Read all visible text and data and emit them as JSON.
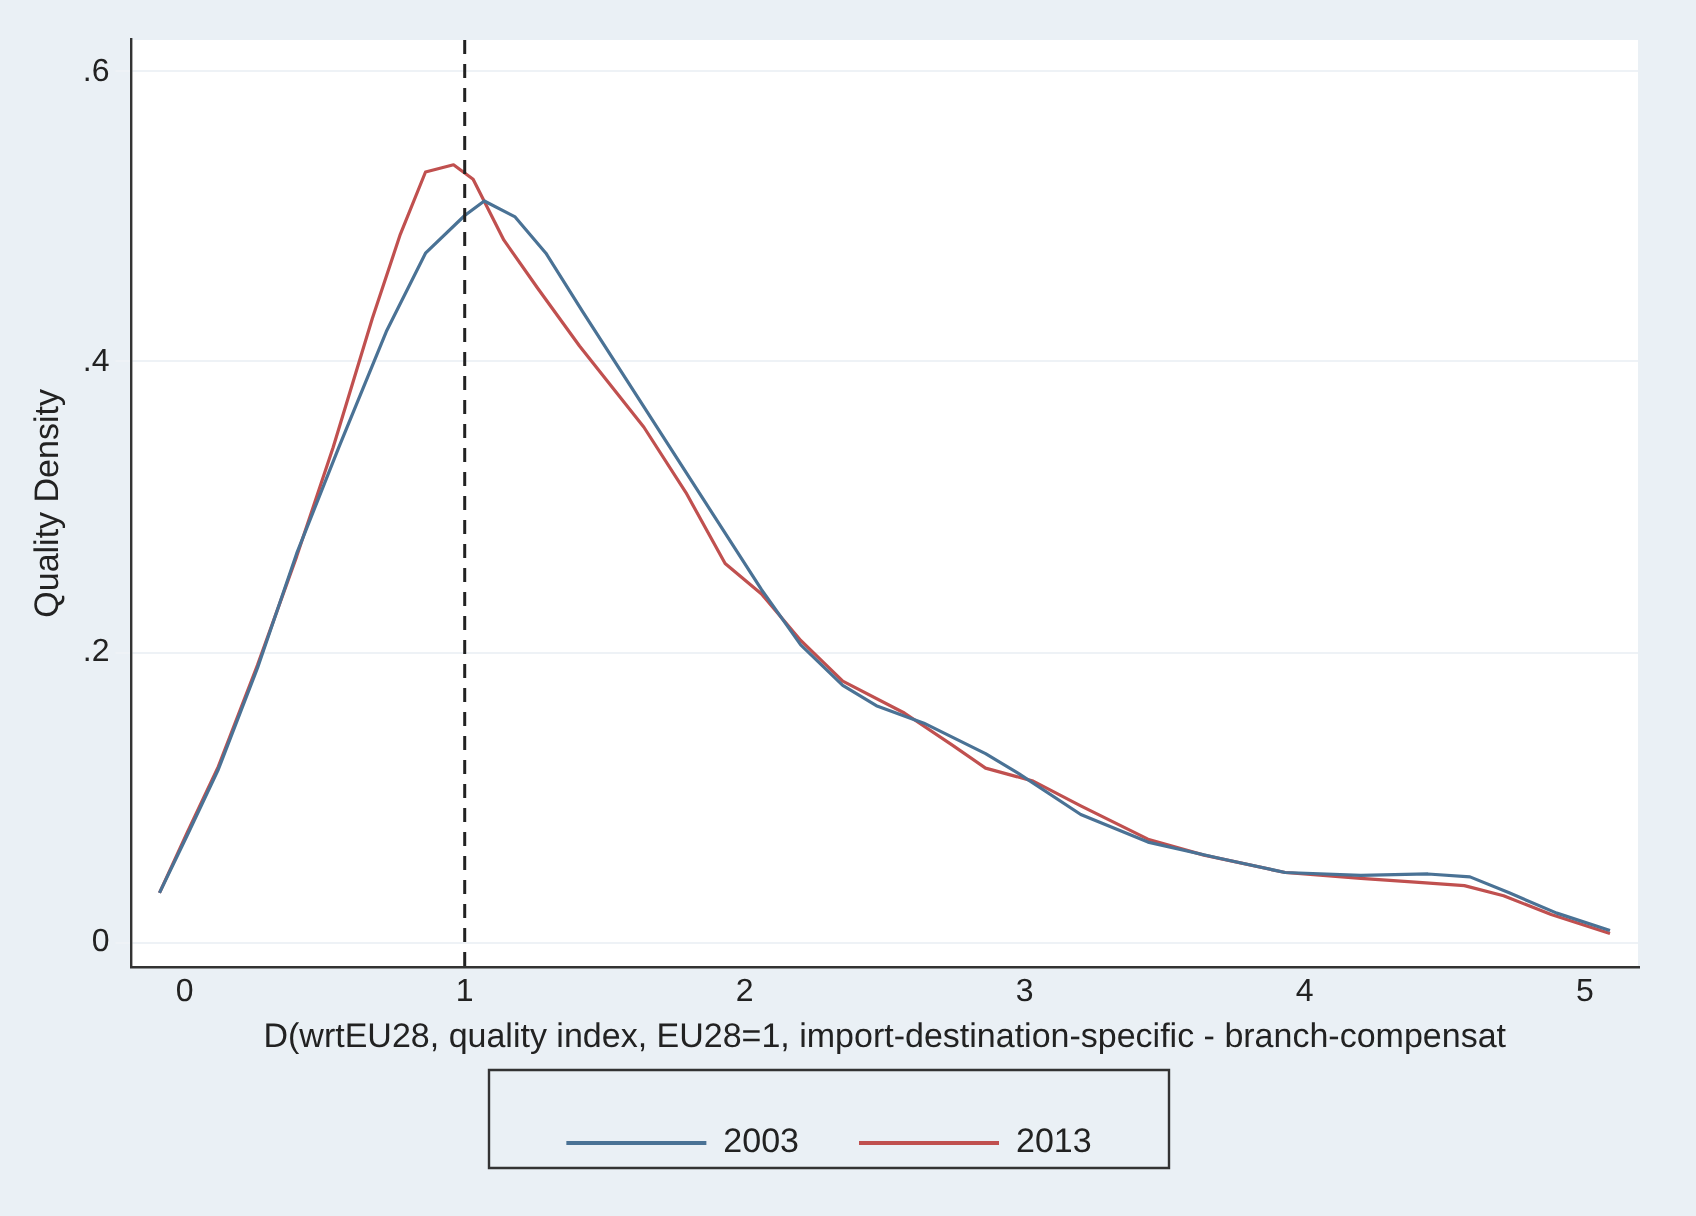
{
  "chart_data": {
    "type": "line",
    "xlabel": "D(wrtEU28, quality index, EU28=1, import-destination-specific - branch-compensat",
    "ylabel": "Quality Density",
    "xlim": [
      -0.19,
      5.19
    ],
    "xticks": [
      0,
      1,
      2,
      3,
      4,
      5
    ],
    "ylim": [
      -0.017,
      0.622
    ],
    "yticks": [
      0,
      {
        "value": 0.2,
        "label": ".2"
      },
      {
        "value": 0.4,
        "label": ".4"
      },
      {
        "value": 0.6,
        "label": ".6"
      }
    ],
    "grid": "y",
    "legend": "bottom",
    "marker": "none",
    "line_style": "solid",
    "ref_lines": [
      {
        "axis": "x",
        "value": 1,
        "color": "#222222",
        "line_style": "dashed"
      }
    ],
    "series": [
      {
        "name": "2003",
        "color": "#4a7295",
        "x": [
          -0.09,
          0.01,
          0.12,
          0.26,
          0.4,
          0.55,
          0.72,
          0.86,
          1.0,
          1.07,
          1.18,
          1.29,
          1.42,
          1.64,
          1.86,
          2.06,
          2.2,
          2.35,
          2.47,
          2.64,
          2.86,
          2.98,
          3.2,
          3.44,
          3.69,
          3.93,
          4.2,
          4.44,
          4.59,
          4.73,
          4.9,
          5.09
        ],
        "values": [
          0.034,
          0.074,
          0.119,
          0.189,
          0.268,
          0.341,
          0.421,
          0.475,
          0.501,
          0.511,
          0.5,
          0.475,
          0.435,
          0.369,
          0.303,
          0.243,
          0.205,
          0.177,
          0.163,
          0.151,
          0.13,
          0.116,
          0.088,
          0.069,
          0.058,
          0.048,
          0.046,
          0.047,
          0.045,
          0.034,
          0.02,
          0.008
        ]
      },
      {
        "name": "2013",
        "color": "#c0504f",
        "x": [
          -0.09,
          0.01,
          0.12,
          0.26,
          0.4,
          0.53,
          0.67,
          0.77,
          0.86,
          0.96,
          1.03,
          1.14,
          1.26,
          1.41,
          1.64,
          1.79,
          1.93,
          2.06,
          2.2,
          2.35,
          2.57,
          2.74,
          2.86,
          3.03,
          3.2,
          3.44,
          3.64,
          3.93,
          4.2,
          4.42,
          4.57,
          4.71,
          4.88,
          5.09
        ],
        "values": [
          0.034,
          0.076,
          0.121,
          0.191,
          0.266,
          0.341,
          0.43,
          0.488,
          0.531,
          0.536,
          0.526,
          0.484,
          0.451,
          0.411,
          0.355,
          0.31,
          0.261,
          0.24,
          0.208,
          0.18,
          0.158,
          0.136,
          0.12,
          0.111,
          0.094,
          0.071,
          0.06,
          0.048,
          0.044,
          0.041,
          0.039,
          0.032,
          0.019,
          0.006
        ]
      }
    ]
  }
}
